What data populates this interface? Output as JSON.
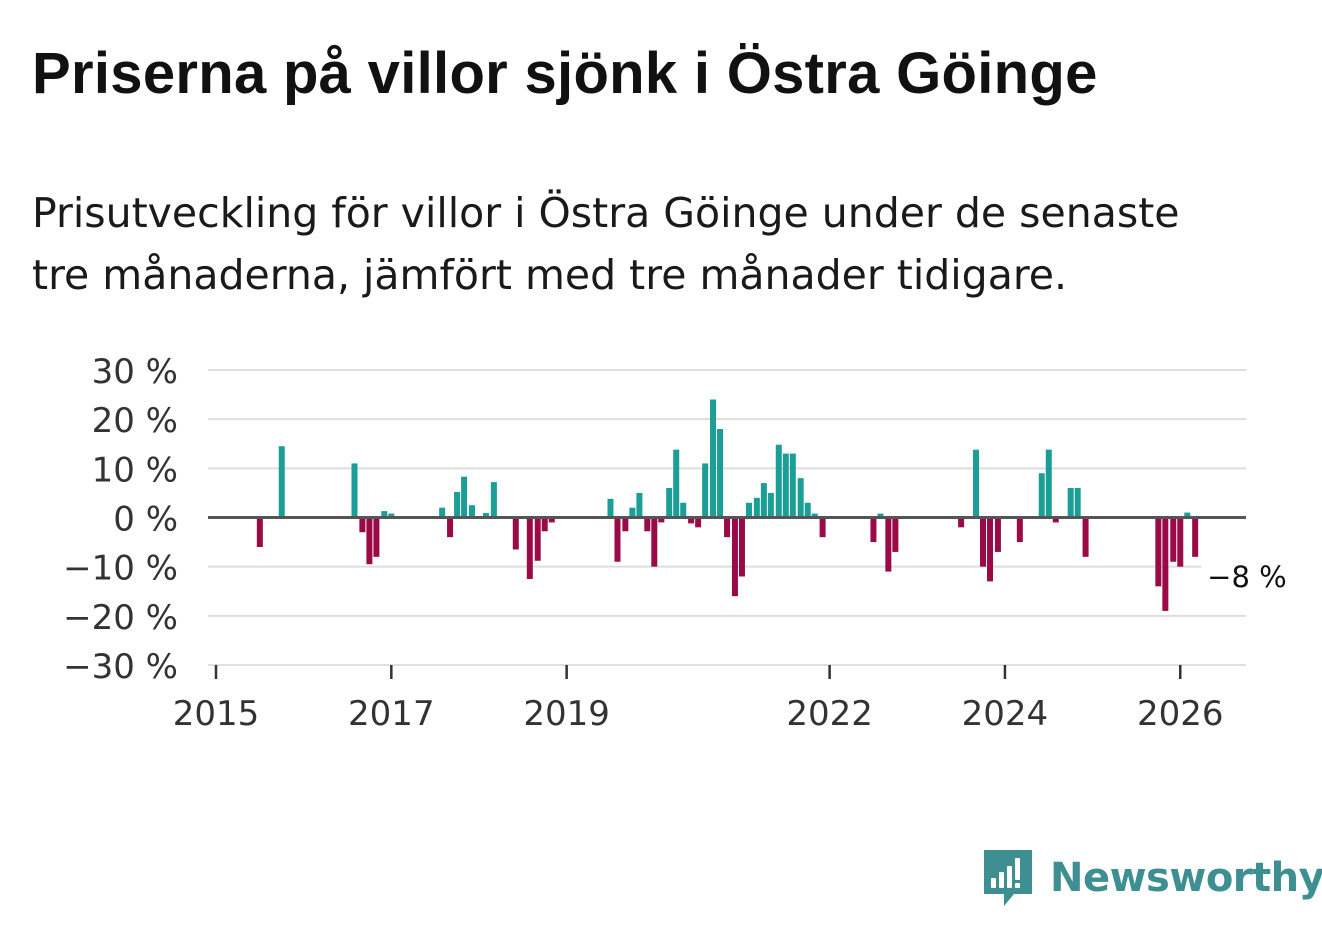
{
  "title": "Priserna på villor sjönk i Östra Göinge",
  "subtitle_lines": [
    "Prisutveckling för villor i Östra Göinge under de senaste",
    "tre månaderna, jämfört med tre månader tidigare."
  ],
  "brand": {
    "name": "Newsworthy",
    "icon": "newsworthy-logo-icon",
    "color": "#3e8f91"
  },
  "colors": {
    "positive": "#1a9e96",
    "negative": "#9a0a47",
    "zero_line": "#555555",
    "grid": "#dddddd"
  },
  "chart_data": {
    "type": "bar",
    "title": "Priserna på villor sjönk i Östra Göinge",
    "xlabel": "",
    "ylabel": "",
    "ylim": [
      -30,
      30
    ],
    "yticks": [
      30,
      20,
      10,
      0,
      -10,
      -20,
      -30
    ],
    "ytick_labels": [
      "30 %",
      "20 %",
      "10 %",
      "0 %",
      "−10 %",
      "−20 %",
      "−30 %"
    ],
    "xlim": [
      2015.0,
      2026.75
    ],
    "xticks": [
      2015,
      2017,
      2019,
      2022,
      2024,
      2026
    ],
    "xtick_labels": [
      "2015",
      "2017",
      "2019",
      "2022",
      "2024",
      "2026"
    ],
    "grid": true,
    "last_value_label": "−8 %",
    "x": [
      2015.5,
      2015.75,
      2016.58,
      2016.67,
      2016.75,
      2016.83,
      2016.92,
      2017.0,
      2017.58,
      2017.67,
      2017.75,
      2017.83,
      2017.92,
      2018.0,
      2018.08,
      2018.17,
      2018.42,
      2018.58,
      2018.67,
      2018.75,
      2018.83,
      2019.5,
      2019.58,
      2019.67,
      2019.75,
      2019.83,
      2019.92,
      2020.0,
      2020.08,
      2020.17,
      2020.25,
      2020.33,
      2020.42,
      2020.5,
      2020.58,
      2020.67,
      2020.75,
      2020.83,
      2020.92,
      2021.0,
      2021.08,
      2021.17,
      2021.25,
      2021.33,
      2021.42,
      2021.5,
      2021.58,
      2021.67,
      2021.75,
      2021.83,
      2021.92,
      2022.5,
      2022.58,
      2022.67,
      2022.75,
      2023.5,
      2023.67,
      2023.75,
      2023.83,
      2023.92,
      2024.17,
      2024.42,
      2024.5,
      2024.58,
      2024.75,
      2024.83,
      2024.92,
      2025.75,
      2025.83,
      2025.92,
      2026.0,
      2026.08,
      2026.17
    ],
    "values": [
      -6,
      14.5,
      11,
      -3,
      -9.5,
      -8,
      1.3,
      0.8,
      2,
      -4,
      5.2,
      8.3,
      2.5,
      0.3,
      0.9,
      7.2,
      -6.5,
      -12.5,
      -8.8,
      -2.8,
      -1,
      3.8,
      -9,
      -2.8,
      2,
      5,
      -2.8,
      -10,
      -1,
      6,
      13.8,
      3,
      -1.2,
      -2,
      11,
      24,
      18,
      -4,
      -16,
      -12,
      3,
      4,
      7,
      5,
      14.8,
      13,
      13,
      8,
      3,
      0.8,
      -4,
      -5,
      0.8,
      -11,
      -7,
      -2,
      13.8,
      -10,
      -13,
      -7,
      -5,
      9,
      13.8,
      -1,
      6,
      6,
      -8,
      -14,
      -19,
      -9,
      -10,
      1,
      -8
    ]
  }
}
